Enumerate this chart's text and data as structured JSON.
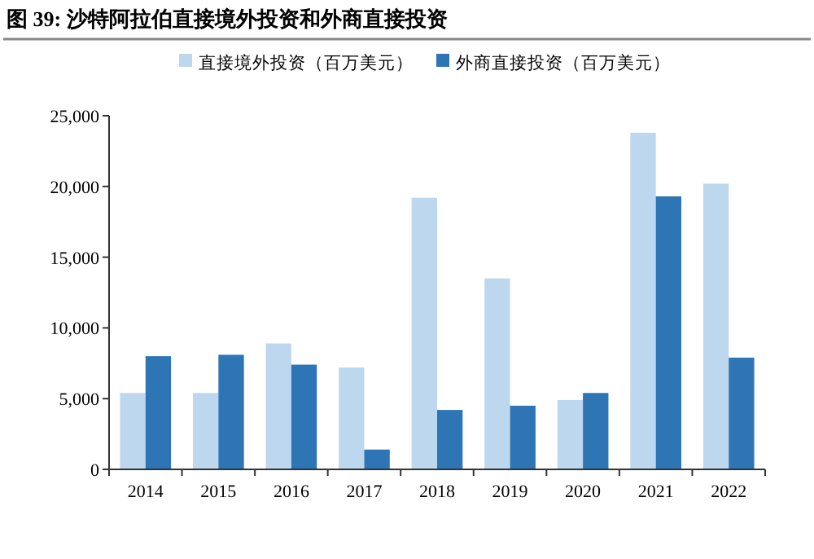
{
  "chart_data": {
    "type": "bar",
    "title": "图 39: 沙特阿拉伯直接境外投资和外商直接投资",
    "categories": [
      "2014",
      "2015",
      "2016",
      "2017",
      "2018",
      "2019",
      "2020",
      "2021",
      "2022"
    ],
    "series": [
      {
        "name": "直接境外投资（百万美元）",
        "color": "#bdd7ee",
        "values": [
          5400,
          5400,
          8900,
          7200,
          19200,
          13500,
          4900,
          23800,
          20200
        ]
      },
      {
        "name": "外商直接投资（百万美元）",
        "color": "#2e75b6",
        "values": [
          8000,
          8100,
          7400,
          1400,
          4200,
          4500,
          5400,
          19300,
          7900
        ]
      }
    ],
    "ylim": [
      0,
      25000
    ],
    "yticks": [
      {
        "value": 0,
        "label": "0"
      },
      {
        "value": 5000,
        "label": "5,000"
      },
      {
        "value": 10000,
        "label": "10,000"
      },
      {
        "value": 15000,
        "label": "15,000"
      },
      {
        "value": 20000,
        "label": "20,000"
      },
      {
        "value": 25000,
        "label": "25,000"
      }
    ],
    "grid": false,
    "legend": "top"
  }
}
